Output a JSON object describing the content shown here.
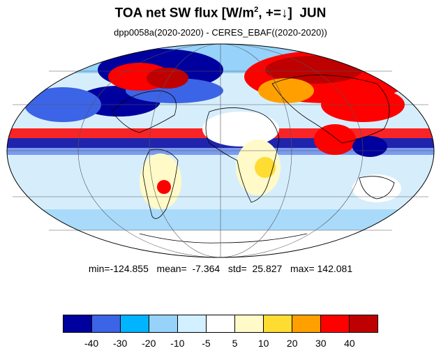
{
  "title": {
    "main": "TOA net SW flux [W/m",
    "sup": "2",
    "rest": ", +=↓]  JUN"
  },
  "subtitle": "dpp0058a(2020-2020) - CERES_EBAF((2020-2020))",
  "stats": "min=-124.855   mean=  -7.364   std=  25.827   max= 142.081",
  "colorbar": {
    "colors": [
      "#00009e",
      "#3c64e6",
      "#00b4ff",
      "#96d2fa",
      "#d2f0ff",
      "#ffffff",
      "#fffac8",
      "#ffdc32",
      "#ffa000",
      "#ff0000",
      "#be0000"
    ],
    "tick_labels": [
      "-40",
      "-30",
      "-20",
      "-10",
      "-5",
      "5",
      "10",
      "20",
      "30",
      "40"
    ]
  },
  "map_colors": {
    "ocean_base": "#d6eefc",
    "land_outline": "#000000",
    "grid": "#555555"
  }
}
